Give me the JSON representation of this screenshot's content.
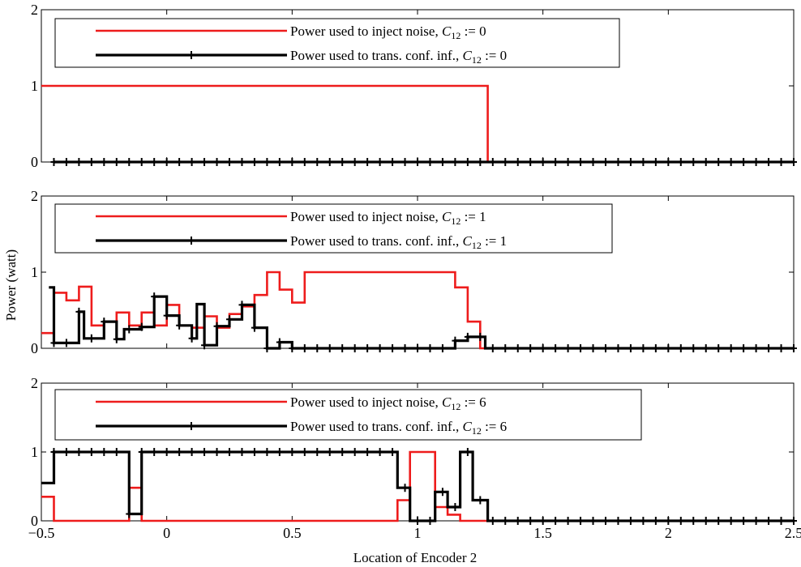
{
  "chart_data": {
    "type": "line",
    "xlabel": "Location of Encoder 2",
    "ylabel": "Power (watt)",
    "xlim": [
      -0.5,
      2.5
    ],
    "ylim": [
      0,
      2
    ],
    "x_ticks": [
      "−0.5",
      "0",
      "0.5",
      "1",
      "1.5",
      "2",
      "2.5"
    ],
    "y_ticks": [
      "0",
      "1",
      "2"
    ],
    "grid": false,
    "legend_position": "top-left",
    "colors": {
      "noise": "#ee1c1c",
      "conf": "#000000"
    },
    "subplots": [
      {
        "legend": [
          {
            "text": "Power used to inject noise, ",
            "math_base": "C",
            "math_sub": "12",
            "math_rest": " := 0"
          },
          {
            "text": "Power used to trans. conf. inf., ",
            "math_base": "C",
            "math_sub": "12",
            "math_rest": " := 0"
          }
        ],
        "series": [
          {
            "role": "noise",
            "x": [
              -0.5,
              1.28,
              1.28,
              2.5
            ],
            "y": [
              1,
              1,
              0,
              0
            ]
          },
          {
            "role": "conf",
            "x": [
              -0.45,
              2.5
            ],
            "y": [
              0,
              0
            ]
          }
        ]
      },
      {
        "legend": [
          {
            "text": "Power used to inject noise, ",
            "math_base": "C",
            "math_sub": "12",
            "math_rest": " := 1"
          },
          {
            "text": "Power used to trans. conf. inf., ",
            "math_base": "C",
            "math_sub": "12",
            "math_rest": " := 1"
          }
        ],
        "series": [
          {
            "role": "noise",
            "x": [
              -0.5,
              -0.45,
              -0.45,
              -0.4,
              -0.4,
              -0.35,
              -0.35,
              -0.3,
              -0.3,
              -0.25,
              -0.25,
              -0.2,
              -0.2,
              -0.15,
              -0.15,
              -0.1,
              -0.1,
              -0.05,
              -0.05,
              0.0,
              0.0,
              0.05,
              0.05,
              0.1,
              0.1,
              0.15,
              0.15,
              0.2,
              0.2,
              0.25,
              0.25,
              0.3,
              0.3,
              0.35,
              0.35,
              0.4,
              0.4,
              0.45,
              0.45,
              0.5,
              0.5,
              0.55,
              0.55,
              1.15,
              1.15,
              1.2,
              1.2,
              1.25,
              1.25,
              1.3,
              1.3,
              2.5
            ],
            "y": [
              0.2,
              0.2,
              0.73,
              0.73,
              0.63,
              0.63,
              0.81,
              0.81,
              0.3,
              0.3,
              0.35,
              0.35,
              0.47,
              0.47,
              0.3,
              0.3,
              0.47,
              0.47,
              0.3,
              0.3,
              0.57,
              0.57,
              0.3,
              0.3,
              0.27,
              0.27,
              0.42,
              0.42,
              0.27,
              0.27,
              0.45,
              0.45,
              0.55,
              0.55,
              0.7,
              0.7,
              1.0,
              1.0,
              0.77,
              0.77,
              0.6,
              0.6,
              1.0,
              1.0,
              0.8,
              0.8,
              0.35,
              0.35,
              0.0,
              0.0,
              0.0,
              0.0
            ]
          },
          {
            "role": "conf",
            "x": [
              -0.47,
              -0.45,
              -0.45,
              -0.35,
              -0.35,
              -0.33,
              -0.33,
              -0.25,
              -0.25,
              -0.2,
              -0.2,
              -0.17,
              -0.17,
              -0.1,
              -0.1,
              -0.05,
              -0.05,
              0.0,
              0.0,
              0.05,
              0.05,
              0.1,
              0.1,
              0.12,
              0.12,
              0.15,
              0.15,
              0.2,
              0.2,
              0.25,
              0.25,
              0.3,
              0.3,
              0.35,
              0.35,
              0.4,
              0.4,
              0.45,
              0.45,
              0.5,
              0.5,
              1.15,
              1.15,
              1.2,
              1.2,
              1.27,
              1.27,
              2.5
            ],
            "y": [
              0.8,
              0.8,
              0.07,
              0.07,
              0.48,
              0.48,
              0.13,
              0.13,
              0.35,
              0.35,
              0.12,
              0.12,
              0.25,
              0.25,
              0.28,
              0.28,
              0.68,
              0.68,
              0.43,
              0.43,
              0.3,
              0.3,
              0.13,
              0.13,
              0.58,
              0.58,
              0.04,
              0.04,
              0.29,
              0.29,
              0.38,
              0.38,
              0.57,
              0.57,
              0.27,
              0.27,
              0.0,
              0.0,
              0.08,
              0.08,
              0.0,
              0.0,
              0.1,
              0.1,
              0.15,
              0.15,
              0.0,
              0.0
            ]
          }
        ]
      },
      {
        "legend": [
          {
            "text": "Power used to inject noise, ",
            "math_base": "C",
            "math_sub": "12",
            "math_rest": " := 6"
          },
          {
            "text": "Power used to trans. conf. inf., ",
            "math_base": "C",
            "math_sub": "12",
            "math_rest": " := 6"
          }
        ],
        "series": [
          {
            "role": "noise",
            "x": [
              -0.5,
              -0.45,
              -0.45,
              -0.15,
              -0.15,
              -0.1,
              -0.1,
              0.92,
              0.92,
              0.97,
              0.97,
              1.07,
              1.07,
              1.12,
              1.12,
              1.17,
              1.17,
              1.22,
              1.22,
              2.5
            ],
            "y": [
              0.35,
              0.35,
              0.0,
              0.0,
              0.48,
              0.48,
              0.0,
              0.0,
              0.3,
              0.3,
              1.0,
              1.0,
              0.2,
              0.2,
              0.09,
              0.09,
              0.0,
              0.0,
              0.0,
              0.0
            ],
            "x_dense": [
              -0.5,
              -0.47,
              -0.47,
              -0.45,
              -0.45
            ]
          },
          {
            "role": "conf",
            "x": [
              -0.5,
              -0.45,
              -0.45,
              -0.15,
              -0.15,
              -0.1,
              -0.1,
              0.92,
              0.92,
              0.97,
              0.97,
              1.02,
              1.02,
              1.07,
              1.07,
              1.12,
              1.12,
              1.17,
              1.17,
              1.22,
              1.22,
              1.28,
              1.28,
              2.5
            ],
            "y": [
              0.55,
              0.55,
              1.0,
              1.0,
              0.1,
              0.1,
              1.0,
              1.0,
              0.48,
              0.48,
              0.0,
              0.0,
              0.0,
              0.0,
              0.42,
              0.42,
              0.2,
              0.2,
              1.0,
              1.0,
              0.3,
              0.3,
              0.0,
              0.0
            ]
          }
        ]
      }
    ]
  }
}
